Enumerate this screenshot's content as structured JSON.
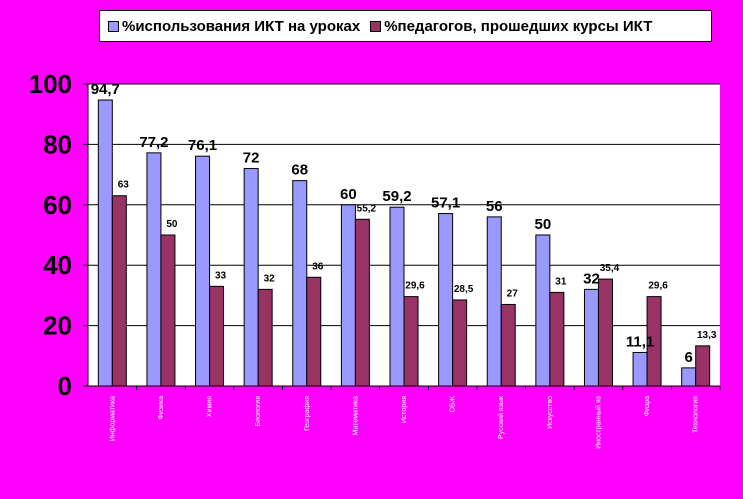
{
  "legend": {
    "series1": "%использования ИКТ на уроках",
    "series2": "%педагогов, прошедших курсы ИКТ"
  },
  "colors": {
    "series1": "#9999ff",
    "series2": "#993366",
    "background": "#ff00ff",
    "plot": "#ffffff"
  },
  "chart_data": {
    "type": "bar",
    "categories": [
      "Информатика",
      "Физика",
      "Химия",
      "Биология",
      "География",
      "Математика",
      "История",
      "ОБЖ",
      "Русский язык",
      "Искусство",
      "Иностранный яз",
      "Физра",
      "Технология"
    ],
    "series": [
      {
        "name": "%использования ИКТ на уроках",
        "values": [
          94.7,
          77.2,
          76.1,
          72,
          68,
          60,
          59.2,
          57.1,
          56,
          50,
          32,
          11.1,
          6
        ],
        "labels": [
          "94,7",
          "77,2",
          "76,1",
          "72",
          "68",
          "60",
          "59,2",
          "57,1",
          "56",
          "50",
          "32",
          "11,1",
          "6"
        ]
      },
      {
        "name": "%педагогов, прошедших курсы ИКТ",
        "values": [
          63,
          50,
          33,
          32,
          36,
          55.2,
          29.6,
          28.5,
          27,
          31,
          35.4,
          29.6,
          13.3
        ],
        "labels": [
          "63",
          "50",
          "33",
          "32",
          "36",
          "55,2",
          "29,6",
          "28,5",
          "27",
          "31",
          "35,4",
          "29,6",
          "13,3"
        ]
      }
    ],
    "yticks": [
      "0",
      "20",
      "40",
      "60",
      "80",
      "100"
    ],
    "ylim": [
      0,
      100
    ],
    "legend_position": "top",
    "grid": true
  }
}
